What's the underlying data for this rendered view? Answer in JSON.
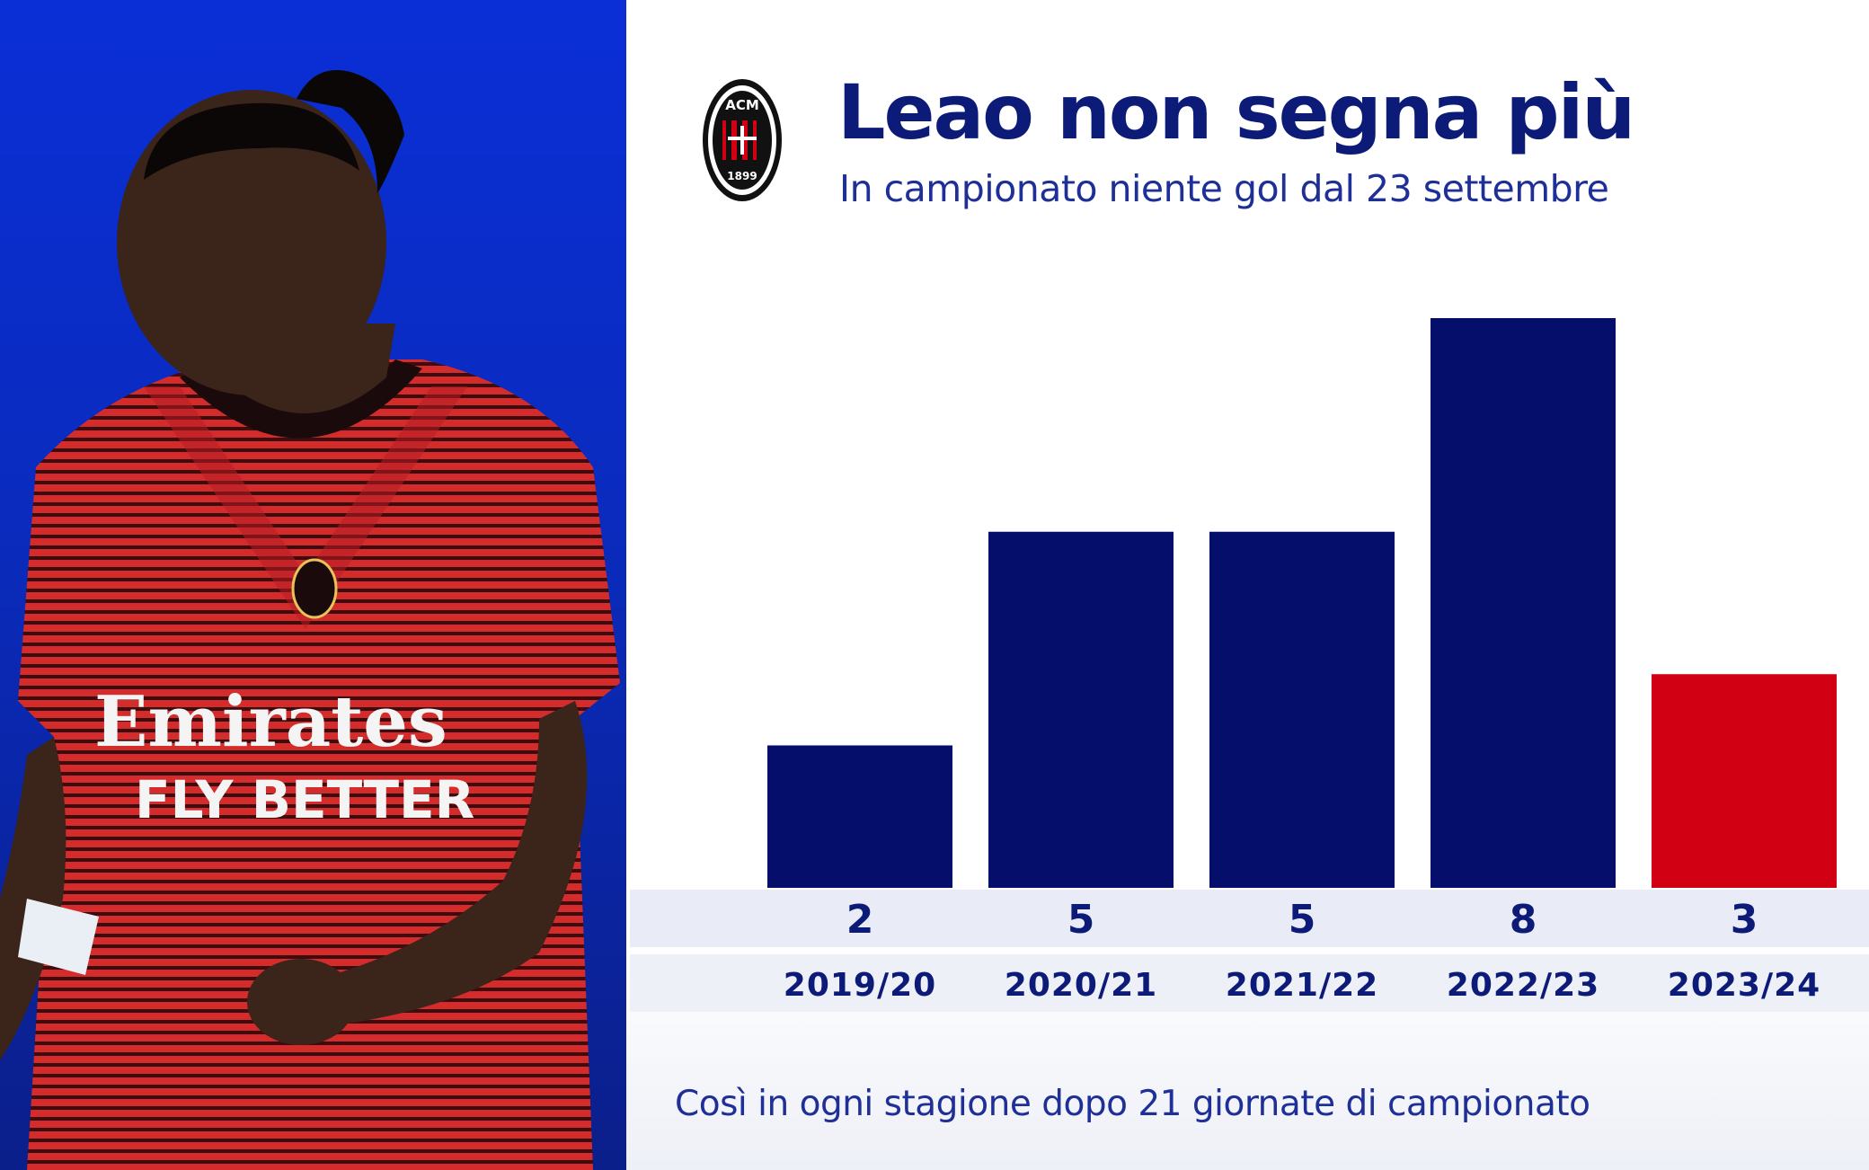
{
  "header": {
    "title": "Leao non segna più",
    "subtitle": "In campionato niente gol dal 23 settembre",
    "logo_icon": "ac-milan-crest-icon",
    "logo_text_top": "ACM",
    "logo_text_bottom": "1899"
  },
  "photo": {
    "icon": "player-photo",
    "shirt_sponsor_line1": "Emirates",
    "shirt_sponsor_line2": "FLY BETTER"
  },
  "colors": {
    "navy": "#0c1a78",
    "bar_navy": "#050f6b",
    "highlight_red": "#d10012",
    "panel_blue": "#0a2fd6"
  },
  "chart_data": {
    "type": "bar",
    "categories": [
      "2019/20",
      "2020/21",
      "2021/22",
      "2022/23",
      "2023/24"
    ],
    "values": [
      2,
      5,
      5,
      8,
      3
    ],
    "highlight_index": 4,
    "title": "Leao non segna più",
    "subtitle": "In campionato niente gol dal 23 settembre",
    "ylim": [
      0,
      8
    ],
    "grid": false,
    "legend": "none"
  },
  "footnote": "Così in ogni stagione dopo 21 giornate di campionato"
}
